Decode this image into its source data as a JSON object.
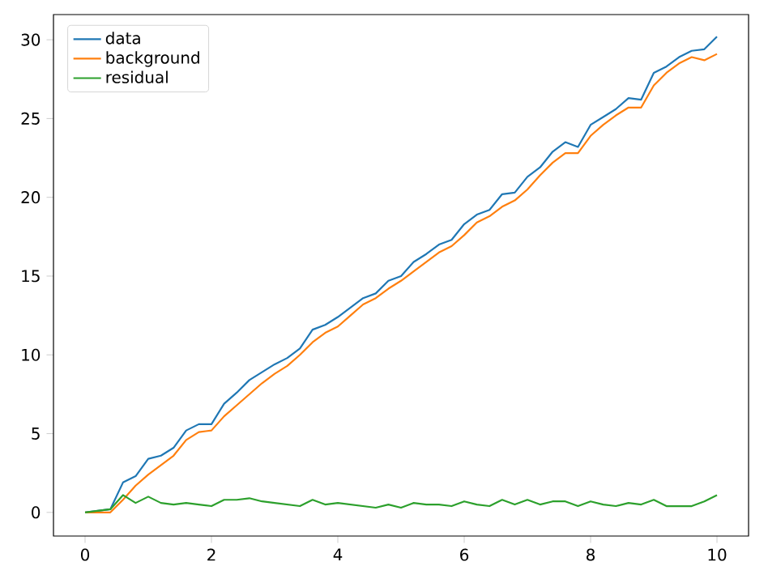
{
  "chart_data": {
    "type": "line",
    "xlim": [
      -0.5,
      10.5
    ],
    "ylim": [
      -1.5,
      31.6
    ],
    "xticks": [
      0,
      2,
      4,
      6,
      8,
      10
    ],
    "yticks": [
      0,
      5,
      10,
      15,
      20,
      25,
      30
    ],
    "legend": "top left",
    "grid": false,
    "marker": "none",
    "line_style": "solid",
    "series": [
      {
        "name": "data",
        "color": "#1f77b4",
        "x": [
          0,
          0.2,
          0.4,
          0.6,
          0.8,
          1.0,
          1.2,
          1.4,
          1.6,
          1.8,
          2.0,
          2.2,
          2.4,
          2.6,
          2.8,
          3.0,
          3.2,
          3.4,
          3.6,
          3.8,
          4.0,
          4.2,
          4.4,
          4.6,
          4.8,
          5.0,
          5.2,
          5.4,
          5.6,
          5.8,
          6.0,
          6.2,
          6.4,
          6.6,
          6.8,
          7.0,
          7.2,
          7.4,
          7.6,
          7.8,
          8.0,
          8.2,
          8.4,
          8.6,
          8.8,
          9.0,
          9.2,
          9.4,
          9.6,
          9.8,
          10.0
        ],
        "values": [
          0.0,
          0.1,
          0.2,
          1.9,
          2.3,
          3.4,
          3.6,
          4.1,
          5.2,
          5.6,
          5.6,
          6.9,
          7.6,
          8.4,
          8.9,
          9.4,
          9.8,
          10.4,
          11.6,
          11.9,
          12.4,
          13.0,
          13.6,
          13.9,
          14.7,
          15.0,
          15.9,
          16.4,
          17.0,
          17.3,
          18.3,
          18.9,
          19.2,
          20.2,
          20.3,
          21.3,
          21.9,
          22.9,
          23.5,
          23.2,
          24.6,
          25.1,
          25.6,
          26.3,
          26.2,
          27.9,
          28.3,
          28.9,
          29.3,
          29.4,
          30.2
        ]
      },
      {
        "name": "background",
        "color": "#ff7f0e",
        "x": [
          0,
          0.2,
          0.4,
          0.6,
          0.8,
          1.0,
          1.2,
          1.4,
          1.6,
          1.8,
          2.0,
          2.2,
          2.4,
          2.6,
          2.8,
          3.0,
          3.2,
          3.4,
          3.6,
          3.8,
          4.0,
          4.2,
          4.4,
          4.6,
          4.8,
          5.0,
          5.2,
          5.4,
          5.6,
          5.8,
          6.0,
          6.2,
          6.4,
          6.6,
          6.8,
          7.0,
          7.2,
          7.4,
          7.6,
          7.8,
          8.0,
          8.2,
          8.4,
          8.6,
          8.8,
          9.0,
          9.2,
          9.4,
          9.6,
          9.8,
          10.0
        ],
        "values": [
          0.0,
          0.0,
          0.0,
          0.8,
          1.7,
          2.4,
          3.0,
          3.6,
          4.6,
          5.1,
          5.2,
          6.1,
          6.8,
          7.5,
          8.2,
          8.8,
          9.3,
          10.0,
          10.8,
          11.4,
          11.8,
          12.5,
          13.2,
          13.6,
          14.2,
          14.7,
          15.3,
          15.9,
          16.5,
          16.9,
          17.6,
          18.4,
          18.8,
          19.4,
          19.8,
          20.5,
          21.4,
          22.2,
          22.8,
          22.8,
          23.9,
          24.6,
          25.2,
          25.7,
          25.7,
          27.1,
          27.9,
          28.5,
          28.9,
          28.7,
          29.1
        ]
      },
      {
        "name": "residual",
        "color": "#2ca02c",
        "x": [
          0,
          0.2,
          0.4,
          0.6,
          0.8,
          1.0,
          1.2,
          1.4,
          1.6,
          1.8,
          2.0,
          2.2,
          2.4,
          2.6,
          2.8,
          3.0,
          3.2,
          3.4,
          3.6,
          3.8,
          4.0,
          4.2,
          4.4,
          4.6,
          4.8,
          5.0,
          5.2,
          5.4,
          5.6,
          5.8,
          6.0,
          6.2,
          6.4,
          6.6,
          6.8,
          7.0,
          7.2,
          7.4,
          7.6,
          7.8,
          8.0,
          8.2,
          8.4,
          8.6,
          8.8,
          9.0,
          9.2,
          9.4,
          9.6,
          9.8,
          10.0
        ],
        "values": [
          0.0,
          0.1,
          0.2,
          1.1,
          0.6,
          1.0,
          0.6,
          0.5,
          0.6,
          0.5,
          0.4,
          0.8,
          0.8,
          0.9,
          0.7,
          0.6,
          0.5,
          0.4,
          0.8,
          0.5,
          0.6,
          0.5,
          0.4,
          0.3,
          0.5,
          0.3,
          0.6,
          0.5,
          0.5,
          0.4,
          0.7,
          0.5,
          0.4,
          0.8,
          0.5,
          0.8,
          0.5,
          0.7,
          0.7,
          0.4,
          0.7,
          0.5,
          0.4,
          0.6,
          0.5,
          0.8,
          0.4,
          0.4,
          0.4,
          0.7,
          1.1
        ]
      }
    ]
  }
}
